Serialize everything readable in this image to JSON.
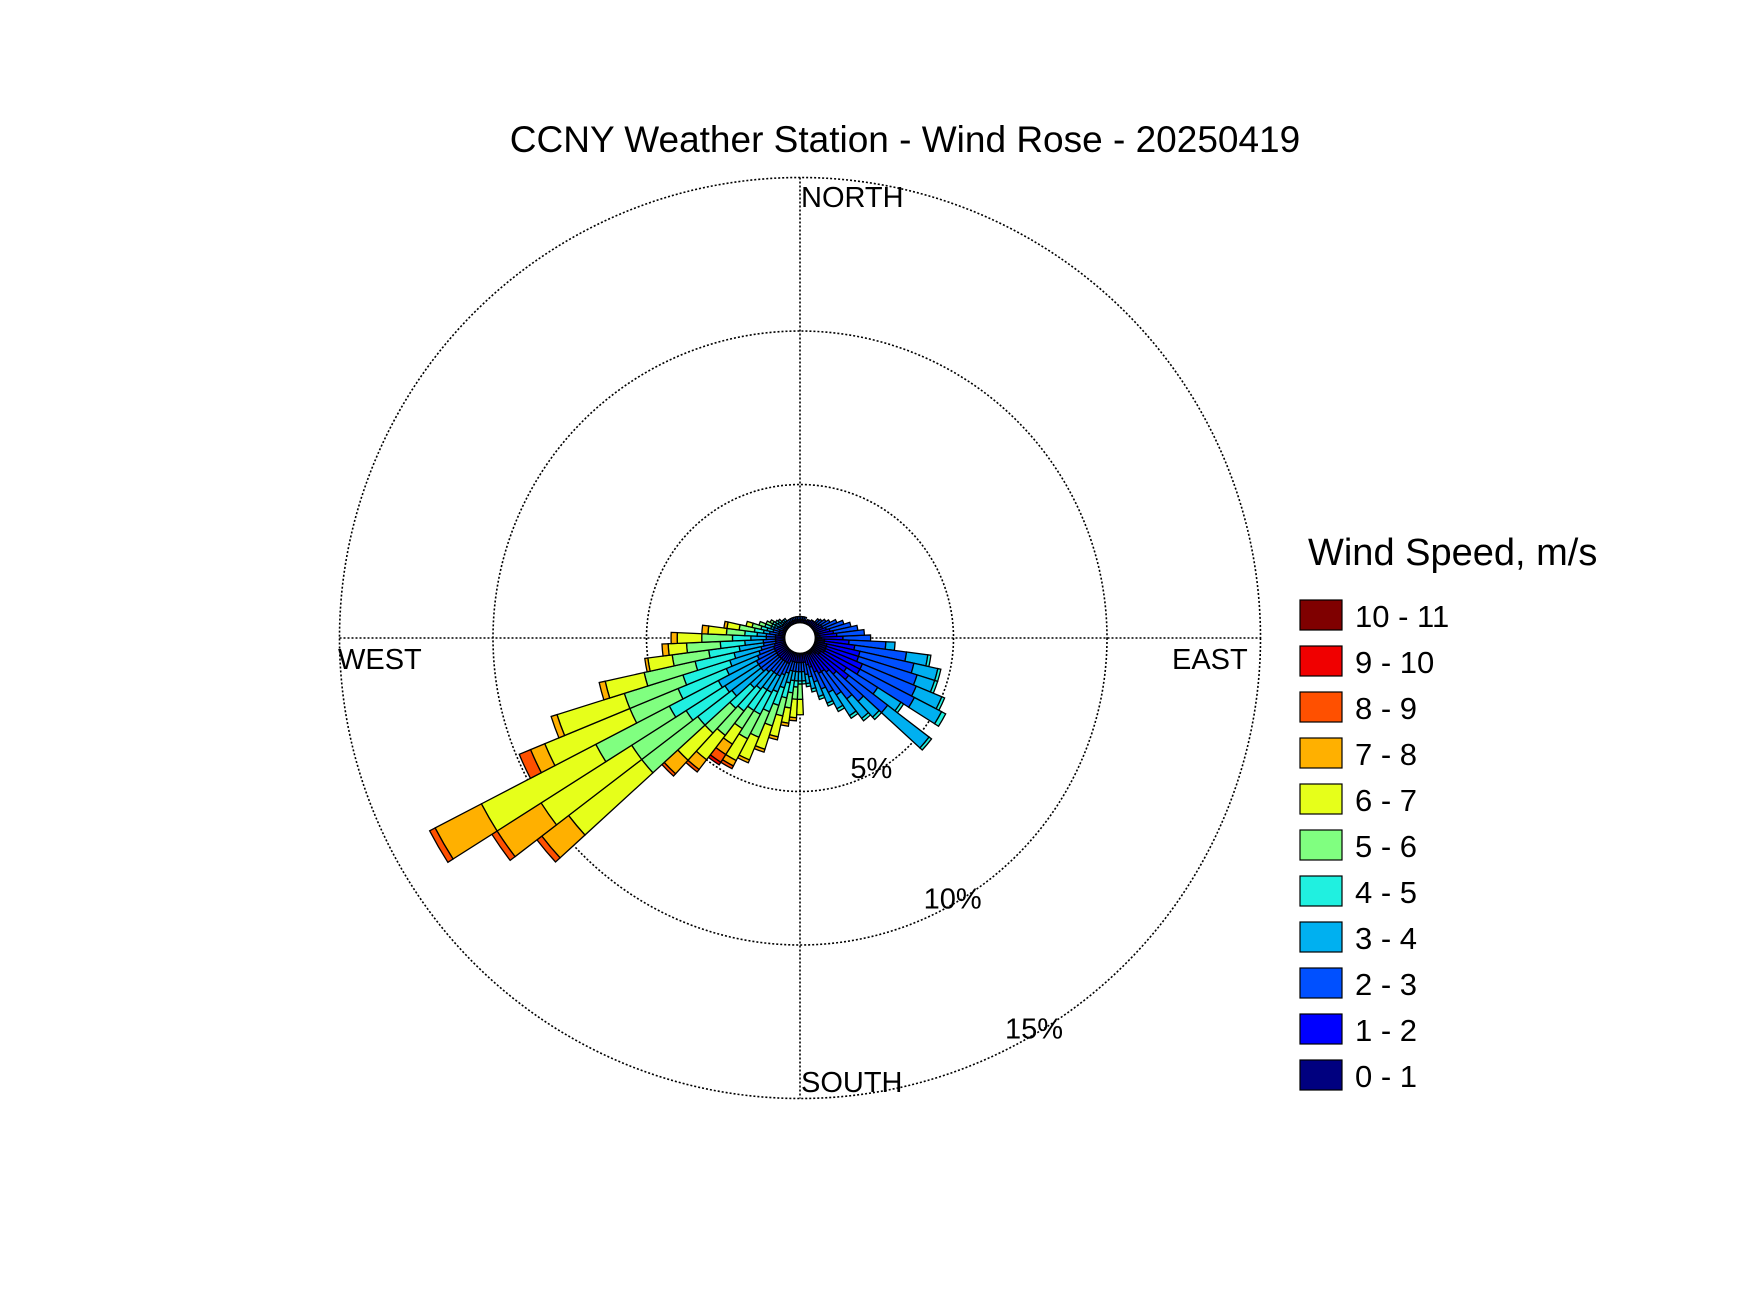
{
  "chart_data": {
    "type": "wind-rose",
    "title": "CCNY Weather Station - Wind Rose - 20250419",
    "direction_labels": {
      "north": "NORTH",
      "east": "EAST",
      "south": "SOUTH",
      "west": "WEST"
    },
    "ring_values": [
      5,
      10,
      15
    ],
    "ring_labels": [
      "5%",
      "10%",
      "15%"
    ],
    "legend_title": "Wind Speed, m/s",
    "bins": [
      {
        "label": "0 - 1",
        "color": "#00007f"
      },
      {
        "label": "1 - 2",
        "color": "#0000ff"
      },
      {
        "label": "2 - 3",
        "color": "#0050ff"
      },
      {
        "label": "3 - 4",
        "color": "#00b0f0"
      },
      {
        "label": "4 - 5",
        "color": "#20f0e0"
      },
      {
        "label": "5 - 6",
        "color": "#80ff80"
      },
      {
        "label": "6 - 7",
        "color": "#e6ff1a"
      },
      {
        "label": "7 - 8",
        "color": "#ffb000"
      },
      {
        "label": "8 - 9",
        "color": "#ff5000"
      },
      {
        "label": "9 - 10",
        "color": "#f00000"
      },
      {
        "label": "10 - 11",
        "color": "#7f0000"
      }
    ],
    "sector_width_deg": 5,
    "calm_radius_pct": 0.5,
    "sectors": [
      {
        "dir": 90,
        "cum": [
          0.7,
          1.4,
          2.3
        ]
      },
      {
        "dir": 95,
        "cum": [
          0.8,
          1.6,
          2.8,
          3.1
        ]
      },
      {
        "dir": 100,
        "cum": [
          0.8,
          1.8,
          3.5,
          4.2,
          4.3
        ]
      },
      {
        "dir": 105,
        "cum": [
          0.9,
          2.0,
          3.8,
          4.6,
          4.7
        ]
      },
      {
        "dir": 110,
        "cum": [
          0.9,
          2.0,
          4.0,
          4.6,
          4.7
        ]
      },
      {
        "dir": 115,
        "cum": [
          0.9,
          2.2,
          4.1,
          5.0,
          5.1
        ]
      },
      {
        "dir": 120,
        "cum": [
          0.9,
          2.2,
          4.2,
          5.2,
          5.35
        ]
      },
      {
        "dir": 125,
        "cum": [
          0.8,
          1.8,
          3.0,
          3.9,
          4.0
        ]
      },
      {
        "dir": 130,
        "cum": [
          0.8,
          2.0,
          3.6,
          5.3,
          5.4
        ]
      },
      {
        "dir": 135,
        "cum": [
          0.7,
          1.6,
          2.8,
          3.5,
          3.6
        ]
      },
      {
        "dir": 140,
        "cum": [
          0.6,
          1.4,
          2.5,
          3.3,
          3.4
        ]
      },
      {
        "dir": 145,
        "cum": [
          0.6,
          1.3,
          2.2,
          3.0,
          3.1
        ]
      },
      {
        "dir": 150,
        "cum": [
          0.6,
          1.3,
          2.0,
          2.6,
          2.7
        ]
      },
      {
        "dir": 155,
        "cum": [
          0.55,
          1.2,
          1.8,
          2.3,
          2.4
        ]
      },
      {
        "dir": 160,
        "cum": [
          0.5,
          1.0,
          1.5,
          2.0,
          2.1
        ]
      },
      {
        "dir": 165,
        "cum": [
          0.5,
          0.9,
          1.3,
          1.7,
          1.8
        ]
      },
      {
        "dir": 170,
        "cum": [
          0.5,
          0.8,
          1.2,
          1.5,
          1.6
        ]
      },
      {
        "dir": 175,
        "cum": [
          0.5,
          0.8,
          1.1,
          1.4,
          1.5
        ]
      },
      {
        "dir": 180,
        "cum": [
          0.5,
          0.8,
          1.1,
          1.4,
          1.5,
          2.0,
          2.5
        ]
      },
      {
        "dir": 185,
        "cum": [
          0.5,
          0.8,
          1.1,
          1.4,
          1.6,
          2.0,
          2.6,
          2.7
        ]
      },
      {
        "dir": 190,
        "cum": [
          0.5,
          0.8,
          1.1,
          1.4,
          1.8,
          2.3,
          2.8,
          2.9
        ]
      },
      {
        "dir": 195,
        "cum": [
          0.5,
          0.8,
          1.1,
          1.5,
          2.0,
          2.6,
          3.3,
          3.4
        ]
      },
      {
        "dir": 200,
        "cum": [
          0.5,
          0.8,
          1.2,
          1.7,
          2.3,
          3.0,
          3.8,
          3.9
        ]
      },
      {
        "dir": 205,
        "cum": [
          0.5,
          0.9,
          1.3,
          1.9,
          2.6,
          3.5,
          4.3,
          4.4
        ]
      },
      {
        "dir": 210,
        "cum": [
          0.5,
          0.9,
          1.4,
          2.0,
          2.8,
          3.7,
          4.5,
          4.7,
          4.8
        ]
      },
      {
        "dir": 215,
        "cum": [
          0.5,
          0.9,
          1.4,
          2.0,
          2.8,
          3.5,
          4.1,
          4.5,
          4.8,
          4.9
        ]
      },
      {
        "dir": 220,
        "cum": [
          0.5,
          0.9,
          1.4,
          2.1,
          3.0,
          4.0,
          5.0,
          5.4,
          5.5
        ]
      },
      {
        "dir": 225,
        "cum": [
          0.5,
          0.9,
          1.5,
          2.2,
          3.1,
          4.2,
          5.4,
          6.0,
          6.1
        ]
      },
      {
        "dir": 230,
        "cum": [
          0.5,
          0.9,
          1.6,
          2.8,
          4.2,
          6.5,
          9.5,
          10.6,
          10.8
        ]
      },
      {
        "dir": 235,
        "cum": [
          0.5,
          0.9,
          1.6,
          2.9,
          4.4,
          6.5,
          10.0,
          11.7,
          11.9
        ]
      },
      {
        "dir": 240,
        "cum": [
          0.5,
          0.9,
          1.6,
          3.0,
          4.8,
          7.5,
          11.7,
          13.4,
          13.6
        ]
      },
      {
        "dir": 245,
        "cum": [
          0.5,
          0.9,
          1.5,
          2.6,
          4.3,
          6.0,
          9.0,
          9.5,
          9.9
        ]
      },
      {
        "dir": 250,
        "cum": [
          0.5,
          0.9,
          1.4,
          2.4,
          4.0,
          6.0,
          8.3,
          8.5
        ]
      },
      {
        "dir": 255,
        "cum": [
          0.5,
          0.85,
          1.3,
          2.2,
          3.5,
          5.2,
          6.5,
          6.7
        ]
      },
      {
        "dir": 260,
        "cum": [
          0.5,
          0.8,
          1.2,
          2.0,
          3.0,
          4.2,
          5.0,
          5.1
        ]
      },
      {
        "dir": 265,
        "cum": [
          0.5,
          0.8,
          1.2,
          1.8,
          2.6,
          3.7,
          4.3,
          4.5
        ]
      },
      {
        "dir": 270,
        "cum": [
          0.5,
          0.8,
          1.1,
          1.6,
          2.2,
          3.2,
          4.0,
          4.2
        ]
      },
      {
        "dir": 275,
        "cum": [
          0.5,
          0.8,
          1.1,
          1.4,
          1.8,
          2.4,
          3.0,
          3.2
        ]
      },
      {
        "dir": 280,
        "cum": [
          0.5,
          0.7,
          1.0,
          1.2,
          1.5,
          2.0,
          2.4,
          2.5
        ]
      },
      {
        "dir": 285,
        "cum": [
          0.5,
          0.7,
          0.9,
          1.1,
          1.3,
          1.6,
          1.8
        ]
      },
      {
        "dir": 290,
        "cum": [
          0.5,
          0.7,
          0.9,
          1.0,
          1.2,
          1.4
        ]
      },
      {
        "dir": 295,
        "cum": [
          0.5,
          0.6,
          0.8,
          0.9,
          1.0,
          1.2
        ]
      },
      {
        "dir": 300,
        "cum": [
          0.5,
          0.6,
          0.75,
          0.9,
          1.0,
          1.1
        ]
      },
      {
        "dir": 305,
        "cum": [
          0.5,
          0.6,
          0.7,
          0.85,
          0.95
        ]
      },
      {
        "dir": 310,
        "cum": [
          0.5,
          0.6,
          0.7,
          0.8,
          0.9
        ]
      },
      {
        "dir": 315,
        "cum": [
          0.5,
          0.6,
          0.7,
          0.8
        ]
      },
      {
        "dir": 320,
        "cum": [
          0.5,
          0.6,
          0.7,
          0.8
        ]
      },
      {
        "dir": 325,
        "cum": [
          0.5,
          0.6,
          0.7
        ]
      },
      {
        "dir": 330,
        "cum": [
          0.5,
          0.6,
          0.7
        ]
      },
      {
        "dir": 335,
        "cum": [
          0.5,
          0.6,
          0.7
        ]
      },
      {
        "dir": 340,
        "cum": [
          0.5,
          0.6,
          0.7
        ]
      },
      {
        "dir": 345,
        "cum": [
          0.5,
          0.6,
          0.7
        ]
      },
      {
        "dir": 350,
        "cum": [
          0.5,
          0.6,
          0.7
        ]
      },
      {
        "dir": 355,
        "cum": [
          0.5,
          0.6,
          0.7
        ]
      },
      {
        "dir": 0,
        "cum": [
          0.5,
          0.6,
          0.7
        ]
      },
      {
        "dir": 5,
        "cum": [
          0.5,
          0.6,
          0.7
        ]
      },
      {
        "dir": 10,
        "cum": [
          0.5,
          0.6,
          0.7
        ]
      },
      {
        "dir": 15,
        "cum": [
          0.5,
          0.6,
          0.7
        ]
      },
      {
        "dir": 20,
        "cum": [
          0.5,
          0.6
        ]
      },
      {
        "dir": 25,
        "cum": [
          0.5,
          0.65
        ]
      },
      {
        "dir": 30,
        "cum": [
          0.5,
          0.65
        ]
      },
      {
        "dir": 35,
        "cum": [
          0.5,
          0.7
        ]
      },
      {
        "dir": 40,
        "cum": [
          0.5,
          0.7
        ]
      },
      {
        "dir": 45,
        "cum": [
          0.5,
          0.7,
          0.85
        ]
      },
      {
        "dir": 50,
        "cum": [
          0.5,
          0.7,
          0.9
        ]
      },
      {
        "dir": 55,
        "cum": [
          0.5,
          0.75,
          1.0
        ]
      },
      {
        "dir": 60,
        "cum": [
          0.5,
          0.8,
          1.1
        ]
      },
      {
        "dir": 65,
        "cum": [
          0.5,
          0.8,
          1.3
        ]
      },
      {
        "dir": 70,
        "cum": [
          0.55,
          0.9,
          1.5
        ]
      },
      {
        "dir": 75,
        "cum": [
          0.6,
          1.0,
          1.7
        ]
      },
      {
        "dir": 80,
        "cum": [
          0.6,
          1.1,
          1.9
        ]
      },
      {
        "dir": 85,
        "cum": [
          0.65,
          1.2,
          2.1
        ]
      }
    ]
  }
}
